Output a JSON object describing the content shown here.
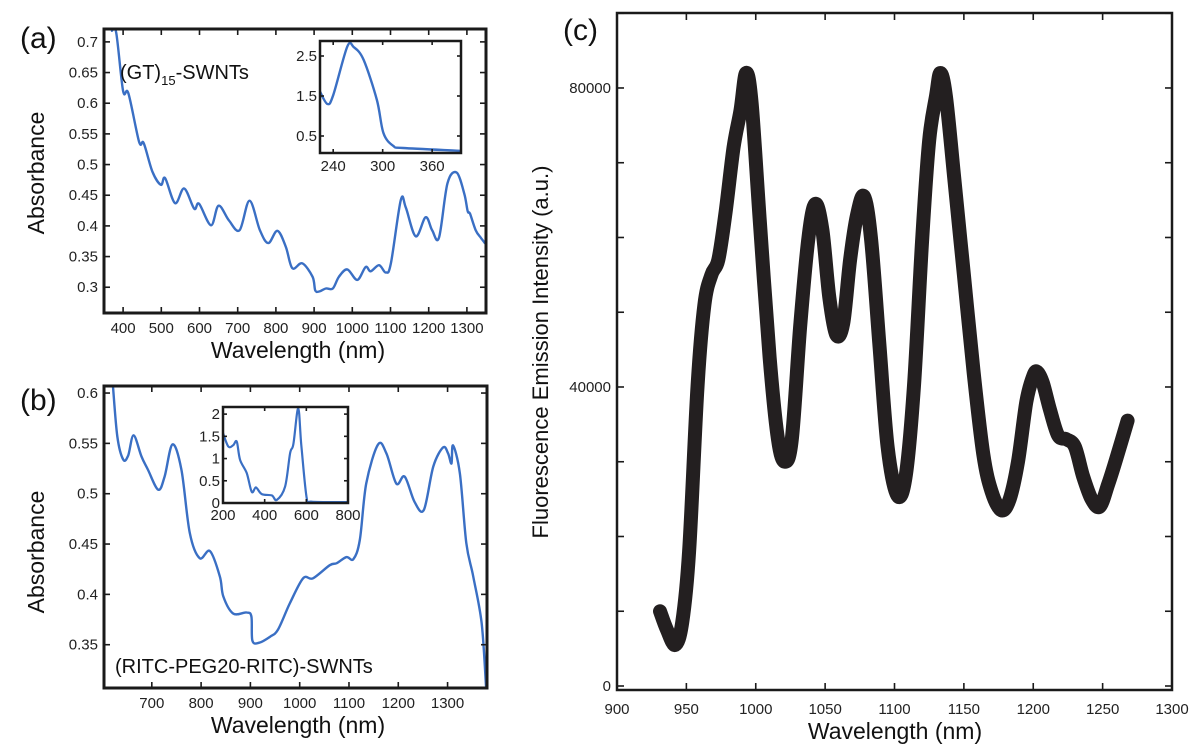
{
  "chart_data": [
    {
      "id": "a",
      "panel_label": "(a)",
      "type": "line",
      "annotation": {
        "main": "(GT)",
        "sub": "15",
        "suffix": "-SWNTs"
      },
      "xlabel": "Wavelength (nm)",
      "ylabel": "Absorbance",
      "xlim": [
        350,
        1350
      ],
      "ylim": [
        0.258,
        0.721
      ],
      "xticks": [
        400,
        500,
        600,
        700,
        800,
        900,
        1000,
        1100,
        1200,
        1300
      ],
      "yticks": [
        0.3,
        0.35,
        0.4,
        0.45,
        0.5,
        0.55,
        0.6,
        0.65,
        0.7
      ],
      "grid": false,
      "color": "#3a6fc4",
      "x": [
        371,
        382,
        400,
        414,
        442,
        454,
        477,
        499,
        510,
        536,
        560,
        586,
        599,
        630,
        650,
        677,
        705,
        731,
        758,
        780,
        804,
        826,
        843,
        869,
        896,
        903,
        913,
        931,
        949,
        965,
        987,
        1013,
        1035,
        1048,
        1070,
        1088,
        1101,
        1127,
        1140,
        1166,
        1192,
        1209,
        1227,
        1249,
        1273,
        1293,
        1302,
        1308,
        1323,
        1336,
        1347
      ],
      "y": [
        0.718,
        0.715,
        0.62,
        0.616,
        0.537,
        0.535,
        0.488,
        0.467,
        0.478,
        0.437,
        0.461,
        0.428,
        0.436,
        0.401,
        0.433,
        0.409,
        0.393,
        0.441,
        0.393,
        0.372,
        0.392,
        0.366,
        0.331,
        0.339,
        0.317,
        0.295,
        0.293,
        0.298,
        0.298,
        0.317,
        0.329,
        0.312,
        0.333,
        0.326,
        0.336,
        0.324,
        0.339,
        0.442,
        0.43,
        0.383,
        0.414,
        0.393,
        0.381,
        0.469,
        0.487,
        0.453,
        0.424,
        0.42,
        0.393,
        0.381,
        0.372
      ]
    },
    {
      "id": "a-inset",
      "type": "line",
      "xlim": [
        224,
        395
      ],
      "ylim": [
        0.075,
        2.875
      ],
      "xticks": [
        240,
        300,
        360
      ],
      "yticks": [
        0.5,
        1.5,
        2.5
      ],
      "grid": false,
      "color": "#3a6fc4",
      "x": [
        224,
        233,
        240,
        257,
        265,
        277,
        293,
        301,
        313,
        325,
        394
      ],
      "y": [
        1.61,
        1.3,
        1.52,
        2.73,
        2.72,
        2.4,
        1.4,
        0.57,
        0.25,
        0.2,
        0.13
      ]
    },
    {
      "id": "b",
      "panel_label": "(b)",
      "type": "line",
      "annotation": {
        "main": "(RITC-PEG20-RITC)-SWNTs"
      },
      "xlabel": "Wavelength (nm)",
      "ylabel": "Absorbance",
      "xlim": [
        603,
        1380
      ],
      "ylim": [
        0.307,
        0.607
      ],
      "xticks": [
        700,
        800,
        900,
        1000,
        1100,
        1200,
        1300
      ],
      "yticks": [
        0.35,
        0.4,
        0.45,
        0.5,
        0.55,
        0.6
      ],
      "grid": false,
      "color": "#3a6fc4",
      "x": [
        621,
        630,
        642,
        652,
        663,
        679,
        692,
        713,
        726,
        742,
        760,
        777,
        797,
        818,
        838,
        845,
        865,
        892,
        902,
        904,
        918,
        940,
        956,
        980,
        1007,
        1027,
        1061,
        1075,
        1095,
        1109,
        1122,
        1135,
        1159,
        1176,
        1196,
        1213,
        1233,
        1252,
        1271,
        1291,
        1301,
        1308,
        1311,
        1325,
        1338,
        1352,
        1369,
        1378
      ],
      "y": [
        0.608,
        0.557,
        0.534,
        0.538,
        0.558,
        0.537,
        0.524,
        0.504,
        0.517,
        0.549,
        0.524,
        0.461,
        0.436,
        0.443,
        0.418,
        0.398,
        0.381,
        0.382,
        0.378,
        0.354,
        0.352,
        0.358,
        0.365,
        0.391,
        0.416,
        0.416,
        0.429,
        0.431,
        0.437,
        0.435,
        0.454,
        0.51,
        0.549,
        0.54,
        0.51,
        0.517,
        0.492,
        0.484,
        0.527,
        0.546,
        0.54,
        0.53,
        0.548,
        0.52,
        0.451,
        0.418,
        0.372,
        0.309
      ]
    },
    {
      "id": "b-inset",
      "type": "line",
      "xlim": [
        200,
        800
      ],
      "ylim": [
        0,
        2.16
      ],
      "xticks": [
        200,
        400,
        600,
        800
      ],
      "yticks": [
        0,
        0.5,
        1,
        1.5,
        2
      ],
      "grid": false,
      "color": "#3a6fc4",
      "x": [
        200,
        226,
        249,
        266,
        282,
        314,
        338,
        358,
        386,
        434,
        458,
        498,
        522,
        538,
        561,
        576,
        602,
        626,
        800
      ],
      "y": [
        1.57,
        1.27,
        1.3,
        1.38,
        0.97,
        0.67,
        0.25,
        0.35,
        0.2,
        0.17,
        0.07,
        0.37,
        1.12,
        1.33,
        2.13,
        1.3,
        0.1,
        0.03,
        0.02
      ]
    },
    {
      "id": "c",
      "panel_label": "(c)",
      "type": "line",
      "xlabel": "Wavelength (nm)",
      "ylabel": "Fluorescence Emission Intensity (a.u.)",
      "xlim": [
        900,
        1300
      ],
      "ylim": [
        -535,
        90030
      ],
      "xticks": [
        900,
        950,
        1000,
        1050,
        1100,
        1150,
        1200,
        1250,
        1300
      ],
      "yticks": [
        0,
        40000,
        80000
      ],
      "yminor_step": 10000,
      "grid": false,
      "color": "#231f20",
      "x": [
        931,
        936,
        942,
        947,
        952,
        958,
        963,
        968,
        973,
        978,
        984,
        989,
        993,
        997,
        1003,
        1010,
        1016,
        1021,
        1026,
        1032,
        1038,
        1043,
        1048,
        1053,
        1058,
        1063,
        1068,
        1073,
        1078,
        1083,
        1089,
        1095,
        1102,
        1108,
        1114,
        1120,
        1125,
        1130,
        1133,
        1137,
        1143,
        1150,
        1157,
        1164,
        1170,
        1177,
        1183,
        1189,
        1195,
        1200,
        1203,
        1207,
        1212,
        1218,
        1224,
        1230,
        1236,
        1242,
        1248,
        1254,
        1260,
        1268
      ],
      "y": [
        10000,
        7500,
        5500,
        8500,
        18000,
        40000,
        51000,
        55000,
        57000,
        63000,
        72000,
        77000,
        82000,
        78000,
        62000,
        44000,
        33000,
        30000,
        33000,
        48000,
        60000,
        64500,
        61000,
        52000,
        47000,
        48500,
        57000,
        63000,
        65500,
        60000,
        46000,
        32000,
        25500,
        28000,
        40000,
        60000,
        73000,
        79000,
        82000,
        79000,
        68000,
        55000,
        42000,
        31000,
        26000,
        23500,
        25000,
        30000,
        38000,
        41500,
        42000,
        40500,
        37000,
        33500,
        33000,
        32000,
        28000,
        25000,
        24000,
        27000,
        30500,
        35500
      ]
    }
  ]
}
